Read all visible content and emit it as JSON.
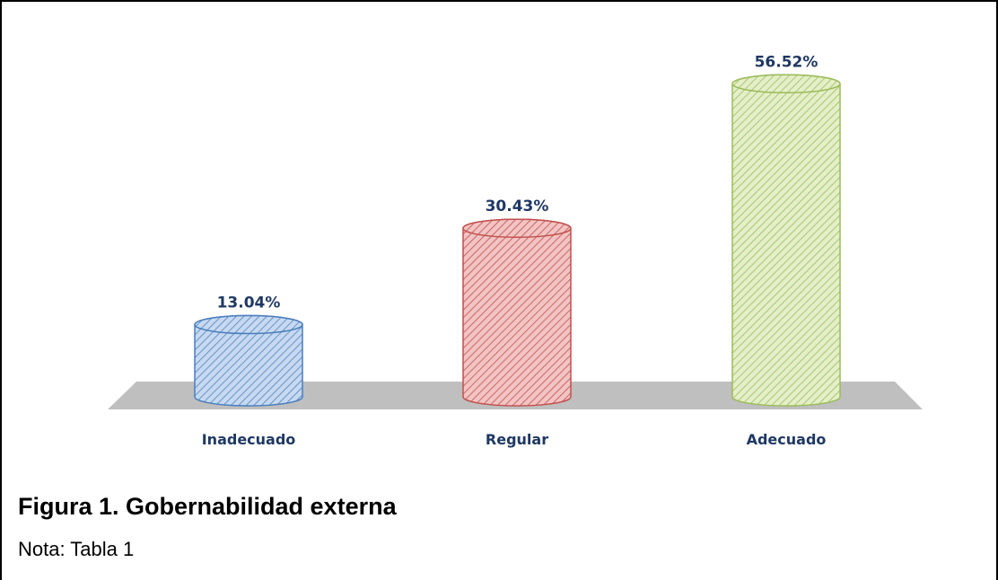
{
  "chart_data": {
    "type": "bar",
    "categories": [
      "Inadecuado",
      "Regular",
      "Adecuado"
    ],
    "values": [
      13.04,
      30.43,
      56.52
    ],
    "data_labels": [
      "13.04%",
      "30.43%",
      "56.52%"
    ],
    "ylim": [
      0,
      60
    ],
    "grid": false,
    "legend": "none",
    "colors": {
      "Inadecuado": {
        "fill": "#c6d9f1",
        "stroke": "#4a7ebb",
        "hatch": "#4f81bd"
      },
      "Regular": {
        "fill": "#f2c4c3",
        "stroke": "#c0504d",
        "hatch": "#c0504d"
      },
      "Adecuado": {
        "fill": "#e4efc9",
        "stroke": "#9bbb59",
        "hatch": "#9bbb59"
      }
    },
    "floor_color": "#bfbfbf"
  },
  "caption": {
    "title": "Figura 1. Gobernabilidad externa",
    "note": "Nota: Tabla 1"
  }
}
